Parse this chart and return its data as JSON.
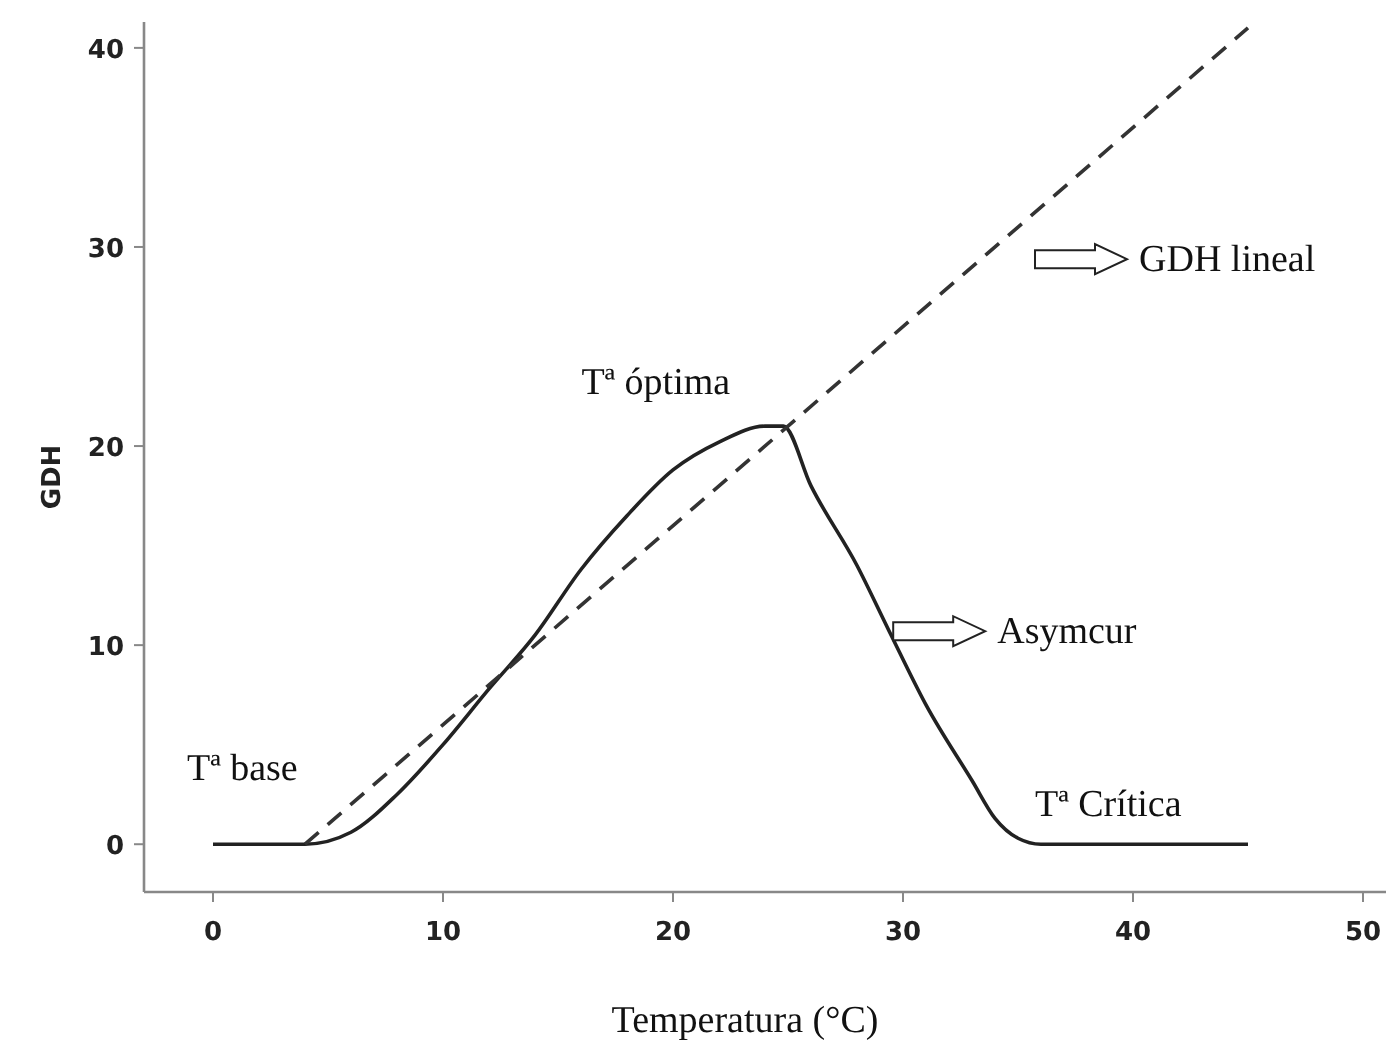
{
  "chart_data": {
    "type": "line",
    "xlabel": "Temperatura (°C)",
    "ylabel": "GDH",
    "xlim": [
      -3,
      51
    ],
    "ylim": [
      -2.4,
      41.3
    ],
    "xticks": [
      0,
      10,
      20,
      30,
      40,
      50
    ],
    "yticks": [
      0,
      10,
      20,
      30,
      40
    ],
    "grid": false,
    "series": [
      {
        "color": "#222222",
        "line_style": "solid",
        "x": [
          0,
          4,
          6,
          8,
          10,
          12,
          14,
          16,
          18,
          20,
          22,
          24,
          24.8,
          26,
          28,
          29.4,
          31,
          33,
          34,
          35,
          36,
          45
        ],
        "values": [
          0,
          0,
          0.6,
          2.5,
          5,
          7.8,
          10.5,
          13.8,
          16.5,
          18.8,
          20.2,
          21,
          21,
          18,
          14,
          10.7,
          7,
          3.2,
          1.3,
          0.3,
          0,
          0
        ]
      },
      {
        "color": "#333333",
        "line_style": "dashed",
        "x": [
          4,
          45
        ],
        "values": [
          0,
          41
        ]
      }
    ],
    "annotations": [
      {
        "text": "Tª base",
        "x": 4,
        "y": 0
      },
      {
        "text": "Tª óptima",
        "x": 24.8,
        "y": 21
      },
      {
        "text": "GDH lineal",
        "x": 36,
        "y": 32
      },
      {
        "text": "Asymcur",
        "x": 29.4,
        "y": 10.7
      },
      {
        "text": "Tª Crítica",
        "x": 36,
        "y": 0
      }
    ]
  }
}
